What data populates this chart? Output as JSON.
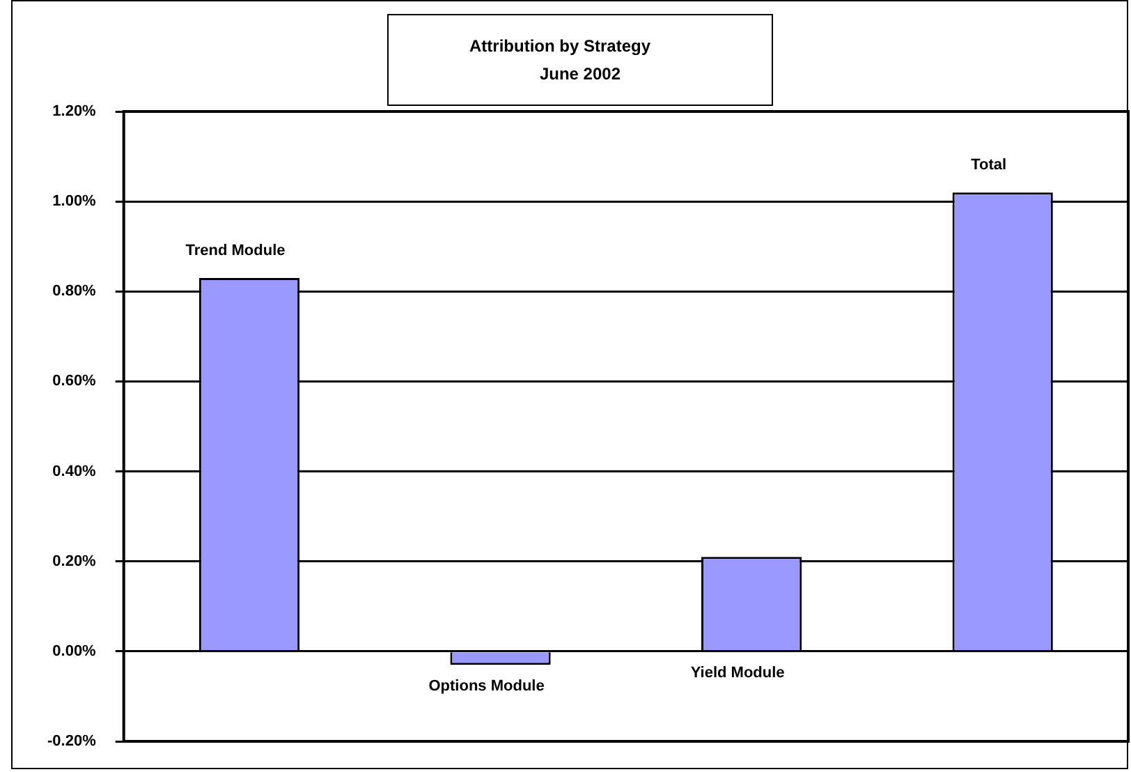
{
  "chart_data": {
    "type": "bar",
    "title": "Attribution by Strategy",
    "subtitle": "June 2002",
    "categories": [
      "Trend Module",
      "Options Module",
      "Yield Module",
      "Total"
    ],
    "values": [
      0.83,
      -0.03,
      0.21,
      1.02
    ],
    "color": "#9999ff",
    "ylim": [
      -0.2,
      1.2
    ],
    "yticks": [
      {
        "value": -0.2,
        "label": "-0.20%"
      },
      {
        "value": 0,
        "label": "0.00%"
      },
      {
        "value": 0.2,
        "label": "0.20%"
      },
      {
        "value": 0.4,
        "label": "0.40%"
      },
      {
        "value": 0.6,
        "label": "0.60%"
      },
      {
        "value": 0.8,
        "label": "0.80%"
      },
      {
        "value": 1,
        "label": "1.00%"
      },
      {
        "value": 1.2,
        "label": "1.20%"
      }
    ],
    "grid": "y",
    "tick_labels": "y",
    "legend": false
  }
}
